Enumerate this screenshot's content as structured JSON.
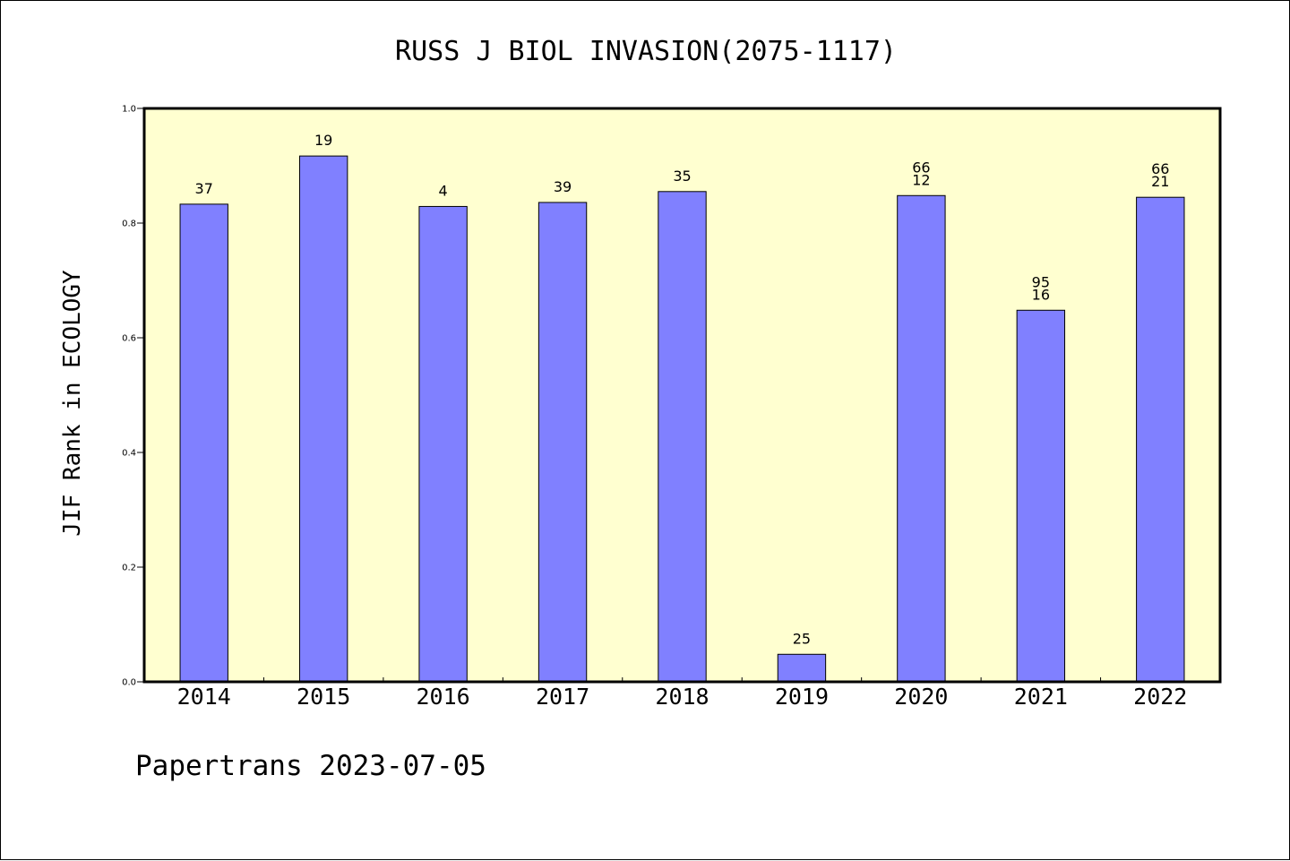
{
  "chart_data": {
    "type": "bar",
    "title": "RUSS J BIOL INVASION(2075-1117)",
    "xlabel": "",
    "ylabel": "JIF Rank in ECOLOGY",
    "ylim": [
      0,
      1.0
    ],
    "yticks": [
      "0.0",
      "0.2",
      "0.4",
      "0.6",
      "0.8",
      "1.0"
    ],
    "categories": [
      "2014",
      "2015",
      "2016",
      "2017",
      "2018",
      "2019",
      "2020",
      "2021",
      "2022"
    ],
    "values": [
      0.833,
      0.917,
      0.829,
      0.836,
      0.855,
      0.048,
      0.848,
      0.648,
      0.845
    ],
    "labels": [
      [
        "37"
      ],
      [
        "19"
      ],
      [
        "4"
      ],
      [
        "39"
      ],
      [
        "35"
      ],
      [
        "25"
      ],
      [
        "66",
        "12"
      ],
      [
        "95",
        "16"
      ],
      [
        "66",
        "21"
      ]
    ],
    "grid": false,
    "colors": {
      "plot_background": "#FFFFD0",
      "bar_fill": "#8080FF",
      "bar_stroke": "#000000"
    }
  },
  "footer": {
    "text": "Papertrans 2023-07-05"
  }
}
